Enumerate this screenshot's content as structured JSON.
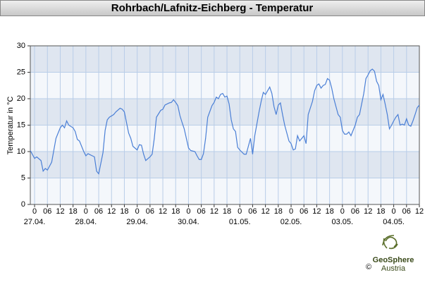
{
  "chart_data": {
    "type": "line",
    "title": "Rohrbach/Lafnitz-Eichberg - Temperatur",
    "y_label": "Temperatur in °C",
    "color": "#4a7fd6",
    "x": [
      -2,
      0,
      1,
      3,
      4,
      5,
      6,
      8,
      10,
      11,
      12,
      13,
      14,
      15,
      16,
      18,
      19,
      20,
      21,
      23,
      24,
      25,
      27,
      28,
      29,
      30,
      32,
      33,
      34,
      35,
      37,
      38,
      40,
      41,
      42,
      43,
      44,
      45,
      46,
      48,
      49,
      50,
      51,
      52,
      54,
      55,
      56,
      57,
      59,
      60,
      61,
      63,
      64,
      65,
      66,
      67,
      68,
      69,
      70,
      71,
      72,
      73,
      75,
      76,
      77,
      78,
      79,
      80,
      81,
      83,
      84,
      85,
      86,
      87,
      88,
      89,
      90,
      91,
      92,
      93,
      94,
      95,
      96,
      98,
      99,
      100,
      101,
      102,
      103,
      105,
      106,
      107,
      108,
      109,
      110,
      111,
      112,
      113,
      114,
      115,
      116,
      117,
      118,
      119,
      120,
      121,
      122,
      123,
      124,
      125,
      126,
      127,
      128,
      130,
      131,
      132,
      133,
      134,
      135,
      136,
      137,
      138,
      139,
      140,
      141,
      142,
      143,
      144,
      145,
      146,
      147,
      148,
      149,
      150,
      151,
      152,
      153,
      154,
      155,
      156,
      157,
      158,
      159,
      160,
      161,
      162,
      163,
      164,
      165,
      166,
      167,
      168,
      169,
      170,
      171,
      172,
      173,
      174,
      175,
      176,
      177,
      178,
      179,
      180
    ],
    "values": [
      10.2,
      8.7,
      9,
      8.3,
      6.3,
      6.8,
      6.5,
      8,
      12.5,
      13.5,
      14.5,
      15,
      14.5,
      15.8,
      15,
      14.5,
      13.8,
      12.3,
      12,
      10,
      9.2,
      9.6,
      9.2,
      9,
      6.3,
      5.8,
      9.8,
      14,
      16,
      16.5,
      17,
      17.5,
      18.2,
      18,
      17.5,
      15.5,
      13.5,
      12.5,
      11,
      10.3,
      11.3,
      11.2,
      9.5,
      8.3,
      9,
      9.5,
      12.5,
      16.5,
      17.8,
      18,
      18.8,
      19.2,
      19.3,
      19.8,
      19.3,
      18.7,
      16.8,
      15.5,
      14.3,
      12.5,
      10.7,
      10.2,
      10,
      9.2,
      8.5,
      8.5,
      9.6,
      12.5,
      16.5,
      18.7,
      19.3,
      20.3,
      20,
      20.8,
      21,
      20.3,
      20.5,
      19,
      16,
      14.3,
      13.8,
      10.8,
      10.3,
      9.5,
      9.5,
      11,
      12.5,
      9.5,
      13,
      17.5,
      19.5,
      21.2,
      20.8,
      21.5,
      22.2,
      21,
      18.5,
      17,
      18.8,
      19.2,
      17,
      15,
      13.5,
      12,
      11.5,
      10.3,
      10.5,
      13,
      12,
      12.5,
      13,
      11.5,
      17,
      19.5,
      21.5,
      22.5,
      22.8,
      22,
      22.5,
      22.7,
      23.8,
      23.5,
      22,
      20,
      18.5,
      17,
      16.5,
      14,
      13.3,
      13.3,
      13.7,
      13,
      14,
      15,
      16.5,
      17,
      19,
      21,
      23.8,
      24.5,
      25.3,
      25.6,
      25.2,
      23.3,
      22.5,
      19.8,
      20.8,
      19,
      17,
      14.3,
      15,
      15.8,
      16.5,
      17,
      15,
      15.2,
      15,
      16.2,
      15,
      14.8,
      15.8,
      17,
      18.3,
      18.8
    ],
    "xlim": [
      -2,
      180
    ],
    "xticks": [
      {
        "value": 0,
        "label": "0"
      },
      {
        "value": 6,
        "label": "06"
      },
      {
        "value": 12,
        "label": "12"
      },
      {
        "value": 18,
        "label": "18"
      },
      {
        "value": 24,
        "label": "0"
      },
      {
        "value": 30,
        "label": "06"
      },
      {
        "value": 36,
        "label": "12"
      },
      {
        "value": 42,
        "label": "18"
      },
      {
        "value": 48,
        "label": "0"
      },
      {
        "value": 54,
        "label": "06"
      },
      {
        "value": 60,
        "label": "12"
      },
      {
        "value": 66,
        "label": "18"
      },
      {
        "value": 72,
        "label": "0"
      },
      {
        "value": 78,
        "label": "06"
      },
      {
        "value": 84,
        "label": "12"
      },
      {
        "value": 90,
        "label": "18"
      },
      {
        "value": 96,
        "label": "0"
      },
      {
        "value": 102,
        "label": "06"
      },
      {
        "value": 108,
        "label": "12"
      },
      {
        "value": 114,
        "label": "18"
      },
      {
        "value": 120,
        "label": "0"
      },
      {
        "value": 126,
        "label": "06"
      },
      {
        "value": 132,
        "label": "12"
      },
      {
        "value": 138,
        "label": "18"
      },
      {
        "value": 144,
        "label": "0"
      },
      {
        "value": 150,
        "label": "06"
      },
      {
        "value": 156,
        "label": "12"
      },
      {
        "value": 162,
        "label": "18"
      },
      {
        "value": 168,
        "label": "0"
      },
      {
        "value": 174,
        "label": "06"
      },
      {
        "value": 180,
        "label": "12"
      }
    ],
    "date_labels": [
      {
        "value": 0,
        "label": "27.04."
      },
      {
        "value": 24,
        "label": "28.04."
      },
      {
        "value": 48,
        "label": "29.04."
      },
      {
        "value": 72,
        "label": "30.04."
      },
      {
        "value": 96,
        "label": "01.05."
      },
      {
        "value": 120,
        "label": "02.05."
      },
      {
        "value": 144,
        "label": "03.05."
      },
      {
        "value": 168,
        "label": "04.05."
      }
    ],
    "ylim": [
      0,
      30
    ],
    "yticks": [
      0,
      5,
      10,
      15,
      20,
      25,
      30
    ],
    "grid": true
  },
  "logo": {
    "name": "GeoSphere",
    "sub": "Austria"
  },
  "copyright": "©"
}
